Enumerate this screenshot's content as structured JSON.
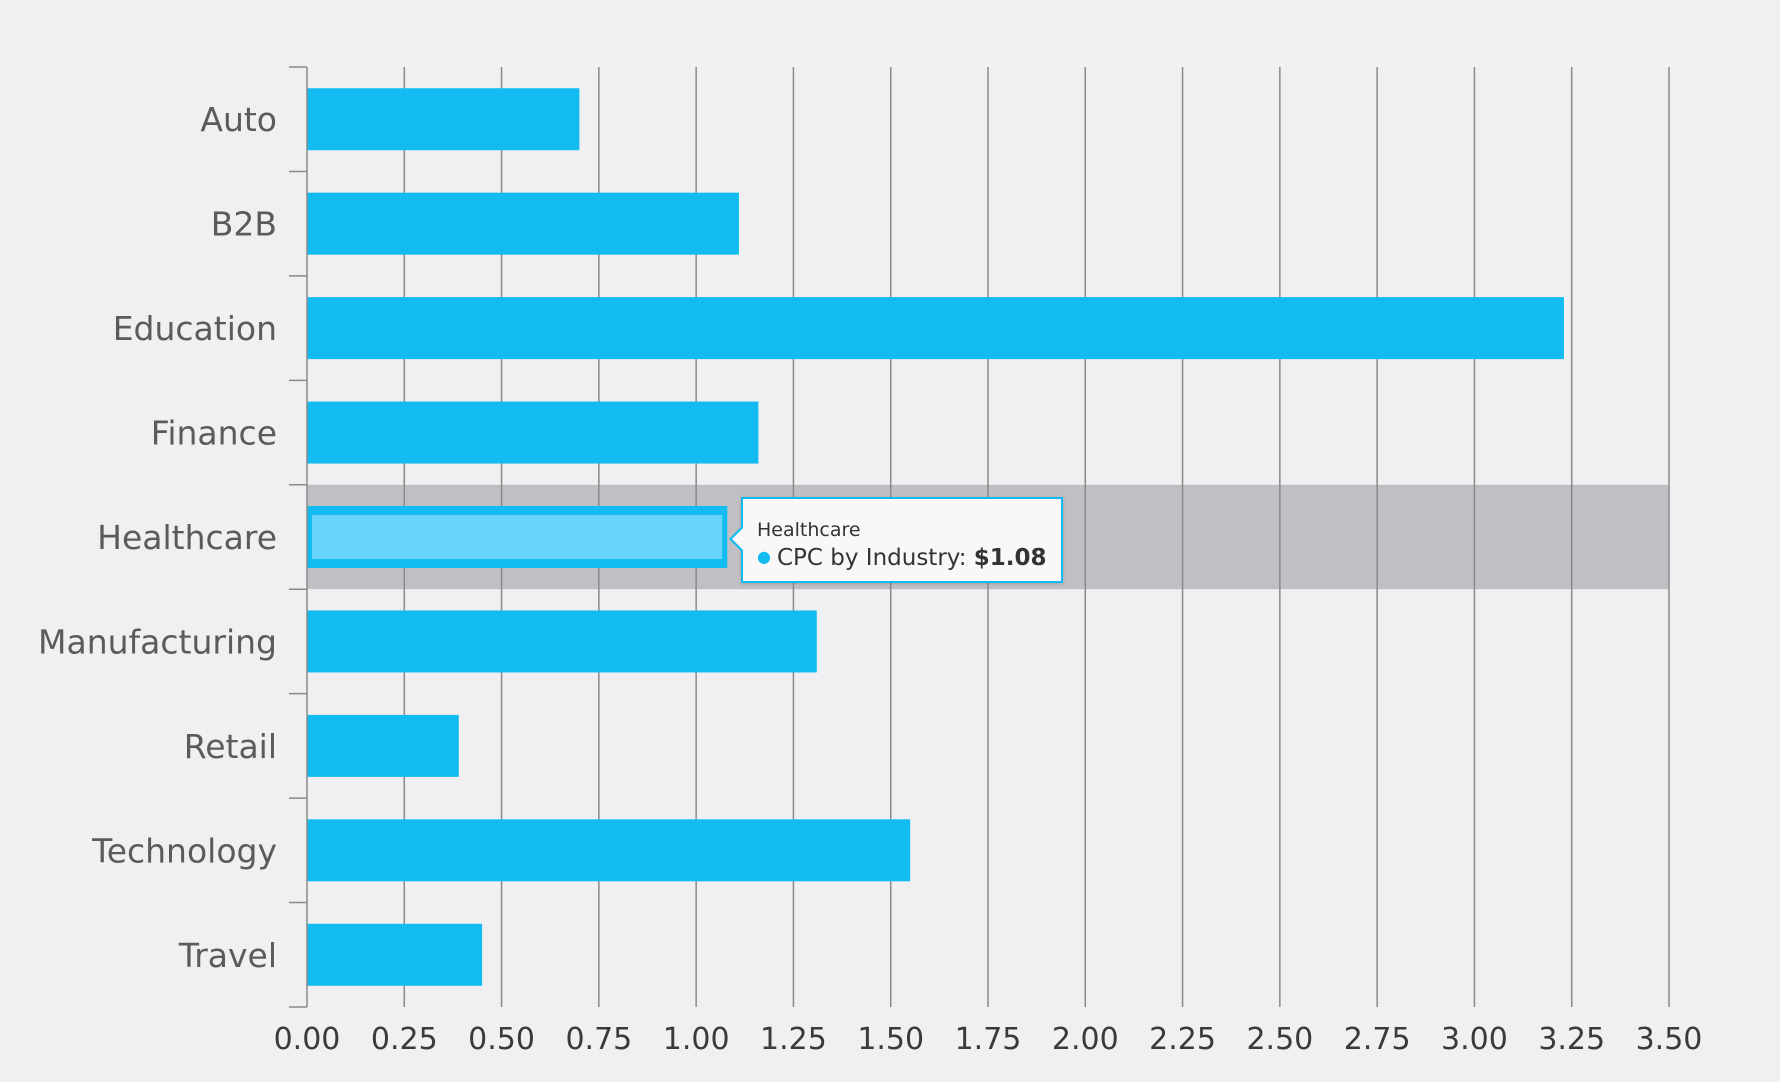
{
  "colors": {
    "background": "#f0f0f2",
    "bar": "#12bbf0",
    "bar_highlight": "#66d4fd",
    "hover_band": "#c0bfc4",
    "grid": "#8a8a8a"
  },
  "chart_data": {
    "type": "bar",
    "orientation": "horizontal",
    "title": "",
    "xlabel": "",
    "ylabel": "",
    "grid": true,
    "categories": [
      "Auto",
      "B2B",
      "Education",
      "Finance",
      "Healthcare",
      "Manufacturing",
      "Retail",
      "Technology",
      "Travel"
    ],
    "series": [
      {
        "name": "CPC by Industry",
        "values": [
          0.7,
          1.11,
          3.23,
          1.16,
          1.08,
          1.31,
          0.39,
          1.55,
          0.45
        ]
      }
    ],
    "xlim": [
      0,
      3.5
    ],
    "xticks": [
      "0.00",
      "0.25",
      "0.50",
      "0.75",
      "1.00",
      "1.25",
      "1.50",
      "1.75",
      "2.00",
      "2.25",
      "2.50",
      "2.75",
      "3.00",
      "3.25",
      "3.50"
    ],
    "highlighted_category": "Healthcare"
  },
  "tooltip": {
    "category": "Healthcare",
    "series_label": "CPC by Industry:",
    "value": "$1.08"
  }
}
